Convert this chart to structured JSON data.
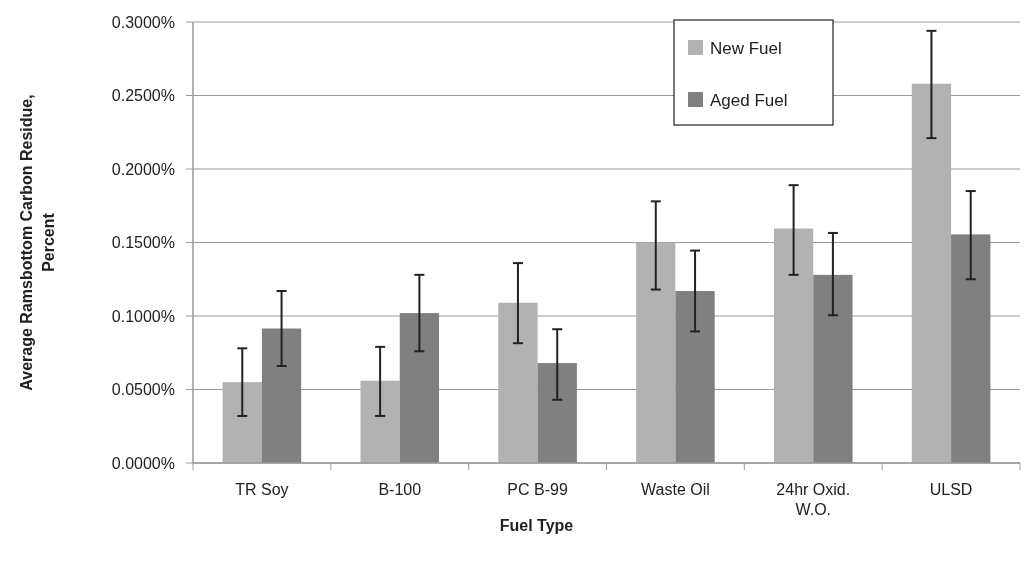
{
  "chart_data": {
    "type": "bar",
    "xlabel": "Fuel Type",
    "ylabel": "Average Ramsbottom Carbon Residue, Percent",
    "categories": [
      "TR Soy",
      "B-100",
      "PC B-99",
      "Waste Oil",
      "24hr Oxid. W.O.",
      "ULSD"
    ],
    "series": [
      {
        "name": "New Fuel",
        "color": "#b2b2b2",
        "values": [
          0.055,
          0.056,
          0.109,
          0.15,
          0.1595,
          0.258
        ],
        "errors": [
          [
            0.032,
            0.078
          ],
          [
            0.032,
            0.079
          ],
          [
            0.0815,
            0.136
          ],
          [
            0.118,
            0.178
          ],
          [
            0.128,
            0.189
          ],
          [
            0.221,
            0.294
          ]
        ]
      },
      {
        "name": "Aged Fuel",
        "color": "#808080",
        "values": [
          0.0915,
          0.102,
          0.068,
          0.117,
          0.128,
          0.1555
        ],
        "errors": [
          [
            0.066,
            0.117
          ],
          [
            0.076,
            0.128
          ],
          [
            0.043,
            0.091
          ],
          [
            0.0895,
            0.1445
          ],
          [
            0.1005,
            0.1565
          ],
          [
            0.125,
            0.185
          ]
        ]
      }
    ],
    "ylim": [
      0,
      0.3
    ],
    "yticks": [
      {
        "value": 0,
        "label": "0.0000%"
      },
      {
        "value": 0.05,
        "label": "0.0500%"
      },
      {
        "value": 0.1,
        "label": "0.1000%"
      },
      {
        "value": 0.15,
        "label": "0.1500%"
      },
      {
        "value": 0.2,
        "label": "0.2000%"
      },
      {
        "value": 0.25,
        "label": "0.2500%"
      },
      {
        "value": 0.3,
        "label": "0.3000%"
      }
    ],
    "grid": "y",
    "legend": "top"
  }
}
